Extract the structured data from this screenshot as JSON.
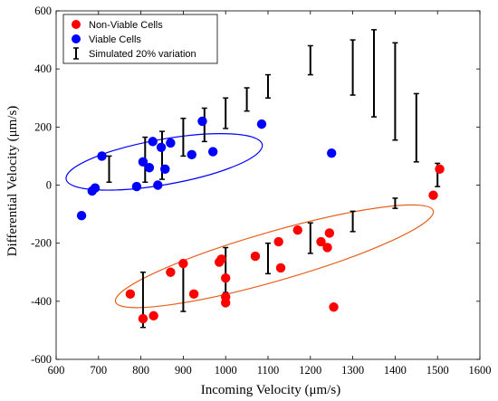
{
  "chart_data": {
    "type": "scatter",
    "xlabel": "Incoming Velocity (μm/s)",
    "ylabel": "Differential Velocity (μm/s)",
    "xlim": [
      600,
      1600
    ],
    "ylim": [
      -600,
      600
    ],
    "xticks": [
      600,
      700,
      800,
      900,
      1000,
      1100,
      1200,
      1300,
      1400,
      1500,
      1600
    ],
    "yticks": [
      -600,
      -400,
      -200,
      0,
      200,
      400,
      600
    ],
    "grid": false,
    "legend_position": "top-left",
    "colors": {
      "non_viable": "#ff0000",
      "viable": "#0000ff",
      "errorbar": "#000000",
      "axis": "#000000"
    },
    "series": [
      {
        "name": "Non-Viable Cells",
        "marker": "circle",
        "color": "#ff0000",
        "points": [
          [
            775,
            -375
          ],
          [
            805,
            -460
          ],
          [
            830,
            -450
          ],
          [
            870,
            -300
          ],
          [
            900,
            -270
          ],
          [
            925,
            -375
          ],
          [
            985,
            -265
          ],
          [
            990,
            -255
          ],
          [
            1000,
            -320
          ],
          [
            1000,
            -385
          ],
          [
            1000,
            -405
          ],
          [
            1070,
            -245
          ],
          [
            1125,
            -195
          ],
          [
            1130,
            -285
          ],
          [
            1170,
            -155
          ],
          [
            1225,
            -195
          ],
          [
            1240,
            -215
          ],
          [
            1245,
            -165
          ],
          [
            1255,
            -420
          ],
          [
            1490,
            -35
          ],
          [
            1505,
            55
          ]
        ]
      },
      {
        "name": "Viable Cells",
        "marker": "circle",
        "color": "#0000ff",
        "points": [
          [
            660,
            -105
          ],
          [
            685,
            -20
          ],
          [
            692,
            -10
          ],
          [
            708,
            100
          ],
          [
            790,
            -5
          ],
          [
            805,
            80
          ],
          [
            820,
            60
          ],
          [
            828,
            150
          ],
          [
            840,
            0
          ],
          [
            848,
            130
          ],
          [
            857,
            55
          ],
          [
            870,
            145
          ],
          [
            920,
            105
          ],
          [
            945,
            220
          ],
          [
            970,
            115
          ],
          [
            1085,
            210
          ],
          [
            1250,
            110
          ]
        ]
      },
      {
        "name": "Simulated 20% variation",
        "marker": "errorbar",
        "color": "#000000",
        "bars": [
          [
            725,
            10,
            100
          ],
          [
            810,
            10,
            165
          ],
          [
            850,
            20,
            185
          ],
          [
            900,
            100,
            230
          ],
          [
            950,
            150,
            265
          ],
          [
            1000,
            195,
            300
          ],
          [
            1050,
            255,
            335
          ],
          [
            1100,
            300,
            380
          ],
          [
            1200,
            380,
            480
          ],
          [
            1300,
            310,
            500
          ],
          [
            1350,
            235,
            535
          ],
          [
            1400,
            155,
            490
          ],
          [
            1450,
            80,
            315
          ],
          [
            1500,
            -5,
            75
          ],
          [
            805,
            -490,
            -300
          ],
          [
            900,
            -435,
            -270
          ],
          [
            1000,
            -370,
            -215
          ],
          [
            1100,
            -305,
            -200
          ],
          [
            1200,
            -235,
            -130
          ],
          [
            1300,
            -160,
            -90
          ],
          [
            1400,
            -80,
            -45
          ]
        ]
      }
    ],
    "annotations": [
      {
        "shape": "ellipse",
        "color": "#0000ff",
        "cx": 855,
        "cy": 80,
        "rx": 235,
        "ry": 78,
        "rotation_deg": -10
      },
      {
        "shape": "ellipse",
        "color": "#e8601c",
        "cx": 1115,
        "cy": -245,
        "rx": 390,
        "ry": 85,
        "rotation_deg": -16
      }
    ]
  }
}
